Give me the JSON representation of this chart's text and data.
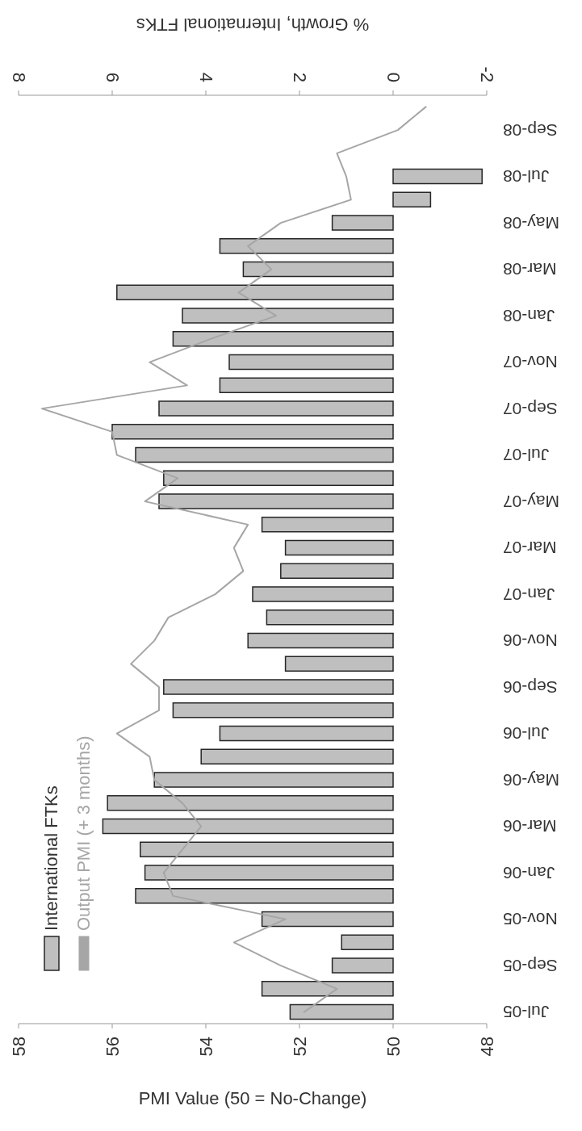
{
  "chart_data": {
    "type": "bar",
    "orientation": "horizontal",
    "categories": [
      null,
      "Sep-08",
      null,
      "Jul-08",
      null,
      "May-08",
      null,
      "Mar-08",
      null,
      "Jan-08",
      null,
      "Nov-07",
      null,
      "Sep-07",
      null,
      "Jul-07",
      null,
      "May-07",
      null,
      "Mar-07",
      null,
      "Jan-07",
      null,
      "Nov-06",
      null,
      "Sep-06",
      null,
      "Jul-06",
      null,
      "May-06",
      null,
      "Mar-06",
      null,
      "Jan-06",
      null,
      "Nov-05",
      null,
      "Sep-05",
      null,
      "Jul-05"
    ],
    "series": [
      {
        "name": "International FTKs",
        "axis": "x2",
        "color": "#bfbfbf",
        "values": [
          null,
          null,
          null,
          -1.9,
          -0.8,
          1.3,
          3.7,
          3.2,
          5.9,
          4.5,
          4.7,
          3.5,
          3.7,
          5.0,
          6.0,
          5.5,
          4.9,
          5.0,
          2.8,
          2.3,
          2.4,
          3.0,
          2.7,
          3.1,
          2.3,
          4.9,
          4.7,
          3.7,
          4.1,
          5.1,
          6.1,
          6.2,
          5.4,
          5.3,
          5.5,
          2.8,
          1.1,
          1.3,
          2.8,
          2.2
        ]
      },
      {
        "name": "Output PMI (+ 3 months)",
        "type": "line",
        "color": "#a6a6a6",
        "values": [
          49.3,
          49.9,
          51.2,
          51.0,
          50.9,
          52.4,
          53.1,
          52.6,
          53.3,
          52.5,
          53.9,
          55.2,
          54.4,
          57.5,
          56.0,
          55.9,
          54.6,
          55.3,
          53.1,
          53.4,
          53.2,
          53.8,
          54.8,
          55.1,
          55.6,
          55.0,
          55.0,
          55.9,
          55.2,
          55.1,
          54.5,
          54.1,
          54.5,
          54.9,
          54.7,
          52.3,
          53.4,
          52.4,
          51.2,
          51.9
        ]
      }
    ],
    "xlim": [
      58,
      48
    ],
    "xticks": [
      58,
      56,
      54,
      52,
      50,
      48
    ],
    "xlabel": "PMI Value (50 = No-Change)",
    "x2lim": [
      8,
      -2
    ],
    "x2ticks": [
      8,
      6,
      4,
      2,
      0,
      -2
    ],
    "x2label": "% Growth, International FTKs",
    "legend": "left"
  }
}
